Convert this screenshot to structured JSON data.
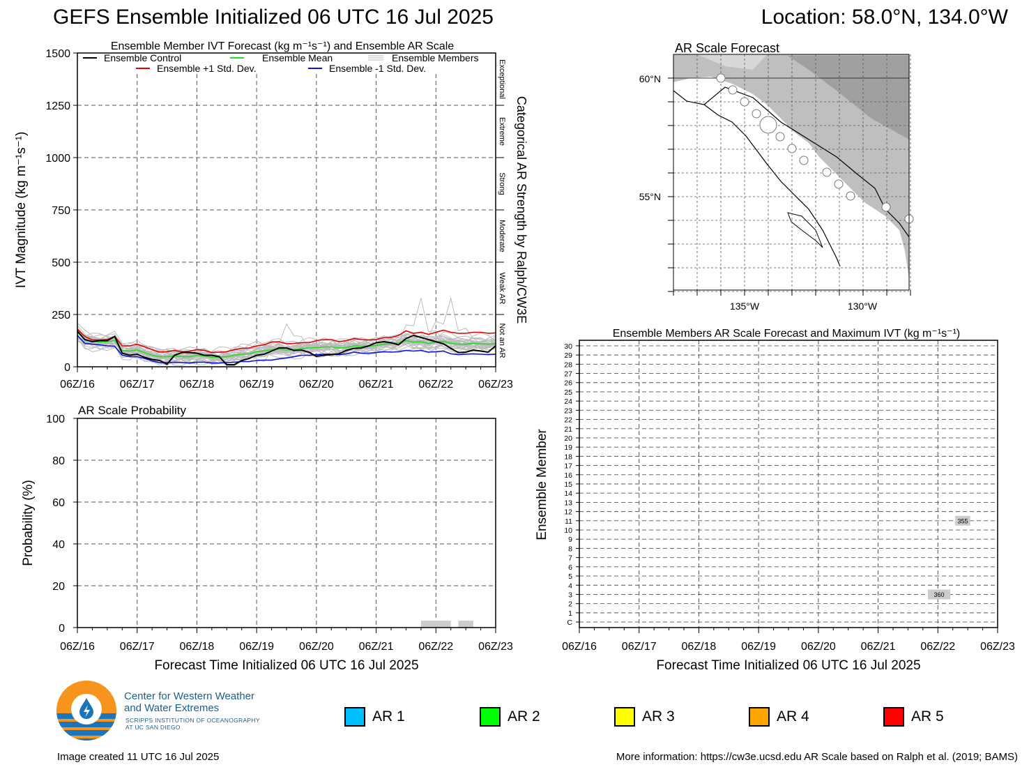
{
  "header": {
    "title": "GEFS Ensemble Initialized 06 UTC 16 Jul 2025",
    "location": "Location: 58.0°N, 134.0°W"
  },
  "ivt_panel": {
    "title": "Ensemble Member IVT Forecast (kg m⁻¹s⁻¹) and Ensemble AR Scale",
    "ylabel": "IVT Magnitude (kg m⁻¹s⁻¹)",
    "right_label": "Categorical AR Strength by Ralph/CW3E",
    "category_labels": [
      "Not an AR",
      "Weak AR",
      "Moderate",
      "Strong",
      "Extreme",
      "Exceptional"
    ],
    "legend": {
      "control": "Ensemble Control",
      "mean": "Ensemble Mean",
      "members": "Ensemble Members",
      "plus1": "Ensemble +1 Std. Dev.",
      "minus1": "Ensemble -1 Std. Dev."
    }
  },
  "prob_panel": {
    "title": "AR Scale Probability",
    "ylabel": "Probability (%)",
    "xlabel": "Forecast Time Initialized 06 UTC 16 Jul 2025"
  },
  "map_panel": {
    "title": "AR Scale Forecast",
    "lat_labels": [
      "60°N",
      "55°N"
    ],
    "lon_labels": [
      "135°W",
      "130°W"
    ]
  },
  "members_panel": {
    "title": "Ensemble Members AR Scale Forecast and Maximum IVT (kg m⁻¹s⁻¹)",
    "ylabel": "Ensemble Member",
    "xlabel": "Forecast Time Initialized 06 UTC 16 Jul 2025",
    "member_labels": [
      "C",
      "1",
      "2",
      "3",
      "4",
      "5",
      "6",
      "7",
      "8",
      "9",
      "10",
      "11",
      "12",
      "13",
      "14",
      "15",
      "16",
      "17",
      "18",
      "19",
      "20",
      "21",
      "22",
      "23",
      "24",
      "25",
      "26",
      "27",
      "28",
      "29",
      "30"
    ]
  },
  "ar_legend": [
    {
      "label": "AR 1",
      "color": "#00bfff"
    },
    {
      "label": "AR 2",
      "color": "#00ff00"
    },
    {
      "label": "AR 3",
      "color": "#ffff00"
    },
    {
      "label": "AR 4",
      "color": "#ffa500"
    },
    {
      "label": "AR 5",
      "color": "#ff0000"
    }
  ],
  "logo": {
    "org_line1": "Center for Western Weather",
    "org_line2": "and Water Extremes",
    "sub_line1": "SCRIPPS INSTITUTION OF OCEANOGRAPHY",
    "sub_line2": "AT UC SAN DIEGO"
  },
  "footer": {
    "created": "Image created 11 UTC 16 Jul 2025",
    "more_info": "More information: https://cw3e.ucsd.edu AR Scale based on Ralph et al. (2019; BAMS)"
  },
  "chart_data": [
    {
      "type": "line",
      "x_labels": [
        "06Z/16",
        "06Z/17",
        "06Z/18",
        "06Z/19",
        "06Z/20",
        "06Z/21",
        "06Z/22",
        "06Z/23"
      ],
      "x_hours_step": 6,
      "ylim": [
        0,
        1500
      ],
      "y_ticks": [
        0,
        250,
        500,
        750,
        1000,
        1250,
        1500
      ],
      "ar_thresholds": [
        250,
        500,
        750,
        1000,
        1250
      ],
      "series": [
        {
          "key": "plus1",
          "color": "#e00000",
          "values": [
            180,
            145,
            128,
            128,
            130,
            145,
            100,
            100,
            108,
            95,
            82,
            70,
            72,
            78,
            72,
            75,
            82,
            78,
            68,
            70,
            72,
            82,
            88,
            90,
            100,
            105,
            118,
            120,
            110,
            112,
            115,
            115,
            125,
            130,
            130,
            120,
            125,
            135,
            130,
            128,
            130,
            140,
            140,
            150,
            172,
            160,
            165,
            155,
            165,
            175,
            165,
            160,
            160,
            165,
            165,
            160,
            162
          ]
        },
        {
          "key": "mean",
          "color": "#22dd22",
          "values": [
            165,
            128,
            122,
            118,
            120,
            125,
            78,
            75,
            80,
            68,
            55,
            48,
            48,
            52,
            48,
            48,
            55,
            52,
            45,
            46,
            48,
            55,
            60,
            62,
            72,
            76,
            82,
            85,
            80,
            82,
            88,
            90,
            92,
            95,
            95,
            90,
            92,
            100,
            98,
            98,
            102,
            108,
            110,
            115,
            125,
            118,
            120,
            112,
            118,
            122,
            112,
            108,
            108,
            112,
            110,
            108,
            110
          ]
        },
        {
          "key": "minus1",
          "color": "#1010dd",
          "values": [
            150,
            112,
            108,
            105,
            100,
            98,
            55,
            48,
            48,
            40,
            28,
            20,
            20,
            22,
            20,
            18,
            22,
            22,
            18,
            18,
            20,
            22,
            25,
            25,
            30,
            32,
            32,
            38,
            42,
            48,
            55,
            55,
            58,
            60,
            60,
            58,
            62,
            70,
            65,
            65,
            68,
            72,
            70,
            72,
            78,
            75,
            78,
            70,
            72,
            75,
            62,
            58,
            60,
            62,
            60,
            58,
            60
          ]
        },
        {
          "key": "control",
          "color": "#000000",
          "values": [
            170,
            130,
            120,
            125,
            125,
            145,
            65,
            55,
            60,
            45,
            35,
            30,
            12,
            55,
            68,
            68,
            65,
            55,
            55,
            48,
            10,
            10,
            30,
            40,
            55,
            60,
            75,
            90,
            90,
            78,
            80,
            70,
            50,
            55,
            58,
            62,
            78,
            88,
            90,
            100,
            115,
            120,
            115,
            105,
            135,
            150,
            140,
            130,
            120,
            110,
            88,
            68,
            70,
            80,
            75,
            70,
            100
          ]
        }
      ]
    },
    {
      "type": "bar",
      "x_labels": [
        "06Z/16",
        "06Z/17",
        "06Z/18",
        "06Z/19",
        "06Z/20",
        "06Z/21",
        "06Z/22",
        "06Z/23"
      ],
      "ylim": [
        0,
        100
      ],
      "y_ticks": [
        0,
        20,
        40,
        60,
        80,
        100
      ],
      "bars": [
        {
          "start_hour": 138,
          "end_hour": 150,
          "value": 3.3,
          "color": "#cccccc"
        },
        {
          "start_hour": 153,
          "end_hour": 159,
          "value": 3.3,
          "color": "#cccccc"
        }
      ]
    },
    {
      "type": "table",
      "x_labels": [
        "06Z/16",
        "06Z/17",
        "06Z/18",
        "06Z/19",
        "06Z/20",
        "06Z/21",
        "06Z/22",
        "06Z/23"
      ],
      "cells": [
        {
          "member": "11",
          "start_hour": 151,
          "end_hour": 157,
          "max_ivt": "355",
          "color": "#cccccc"
        },
        {
          "member": "3",
          "start_hour": 140,
          "end_hour": 149,
          "max_ivt": "360",
          "color": "#cccccc"
        }
      ]
    }
  ]
}
